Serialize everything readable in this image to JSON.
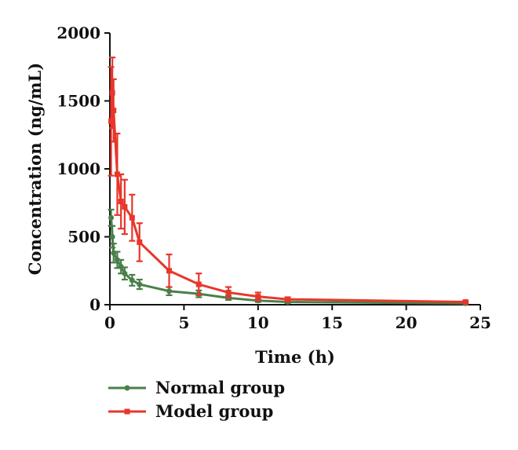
{
  "chart_data": {
    "type": "line",
    "xlabel": "Time (h)",
    "ylabel": "Concentration (ng/mL)",
    "xlim": [
      0,
      25
    ],
    "ylim": [
      0,
      2000
    ],
    "xticks": [
      "0",
      "5",
      "10",
      "15",
      "20",
      "25"
    ],
    "yticks": [
      "0",
      "500",
      "1000",
      "1500",
      "2000"
    ],
    "grid": false,
    "legend_position": "bottom-left",
    "series": [
      {
        "name": "Normal group",
        "color": "#4a7f4a",
        "marker": "circle",
        "x": [
          0.083,
          0.167,
          0.25,
          0.5,
          0.75,
          1,
          1.5,
          2,
          4,
          6,
          8,
          10,
          12,
          24
        ],
        "y": [
          640,
          500,
          380,
          330,
          280,
          230,
          180,
          150,
          100,
          80,
          50,
          30,
          20,
          10
        ],
        "err": [
          60,
          80,
          70,
          60,
          50,
          45,
          40,
          35,
          30,
          25,
          15,
          10,
          8,
          5
        ]
      },
      {
        "name": "Model group",
        "color": "#e8362b",
        "marker": "square",
        "x": [
          0.083,
          0.167,
          0.25,
          0.5,
          0.75,
          1,
          1.5,
          2,
          4,
          6,
          8,
          10,
          12,
          24
        ],
        "y": [
          1350,
          1560,
          1430,
          960,
          760,
          720,
          640,
          460,
          250,
          150,
          90,
          60,
          40,
          20
        ],
        "err": [
          400,
          260,
          230,
          300,
          200,
          200,
          170,
          140,
          120,
          80,
          40,
          30,
          15,
          8
        ]
      }
    ]
  }
}
